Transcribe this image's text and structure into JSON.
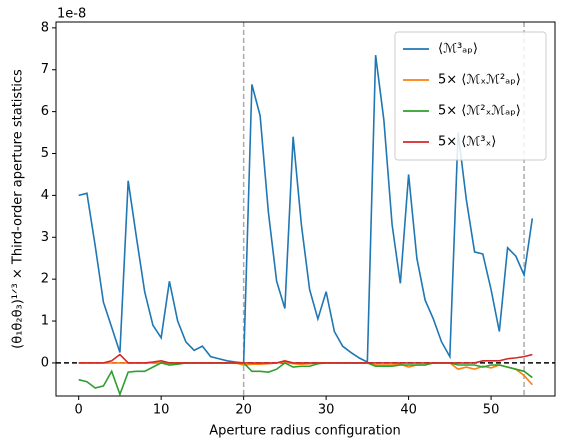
{
  "chart_data": {
    "type": "line",
    "xlabel": "Aperture radius configuration",
    "ylabel": "(θ₁θ₂θ₃)¹ᐟ³  ×  Third-order aperture statistics",
    "offset_text": "1e-8",
    "x": [
      0,
      1,
      2,
      3,
      4,
      5,
      6,
      7,
      8,
      9,
      10,
      11,
      12,
      13,
      14,
      15,
      16,
      17,
      18,
      19,
      20,
      21,
      22,
      23,
      24,
      25,
      26,
      27,
      28,
      29,
      30,
      31,
      32,
      33,
      34,
      35,
      36,
      37,
      38,
      39,
      40,
      41,
      42,
      43,
      44,
      45,
      46,
      47,
      48,
      49,
      50,
      51,
      52,
      53,
      54,
      55
    ],
    "xlim": [
      -2.75,
      57.75
    ],
    "ylim": [
      -0.79,
      8.14
    ],
    "xticks": [
      0,
      10,
      20,
      30,
      40,
      50
    ],
    "yticks": [
      0,
      1,
      2,
      3,
      4,
      5,
      6,
      7,
      8
    ],
    "vlines": [
      20,
      54
    ],
    "hline": 0,
    "legend": "upper right",
    "series": [
      {
        "name": "⟨ℳ³ₐₚ⟩",
        "color": "#1f77b4",
        "values": [
          4.0,
          4.05,
          2.8,
          1.45,
          0.85,
          0.25,
          4.35,
          3.0,
          1.7,
          0.9,
          0.6,
          1.95,
          1.0,
          0.5,
          0.3,
          0.4,
          0.15,
          0.1,
          0.05,
          0.02,
          0.0,
          6.65,
          5.9,
          3.6,
          1.95,
          1.3,
          5.4,
          3.3,
          1.75,
          1.05,
          1.7,
          0.75,
          0.4,
          0.25,
          0.12,
          0.02,
          7.35,
          5.8,
          3.3,
          1.9,
          4.5,
          2.5,
          1.5,
          1.05,
          0.5,
          0.15,
          5.5,
          3.9,
          2.65,
          2.6,
          1.75,
          0.75,
          2.75,
          2.55,
          2.1,
          3.45
        ]
      },
      {
        "name": "5× ⟨ℳₓℳ²ₐₚ⟩",
        "color": "#ff7f0e",
        "values": [
          0.0,
          0.0,
          0.0,
          0.0,
          0.0,
          0.0,
          0.0,
          0.0,
          0.0,
          0.0,
          0.0,
          0.0,
          0.0,
          0.0,
          0.0,
          0.0,
          0.0,
          0.0,
          0.0,
          0.0,
          -0.05,
          -0.03,
          -0.03,
          -0.02,
          0.0,
          0.02,
          -0.02,
          -0.03,
          -0.02,
          0.0,
          0.0,
          0.0,
          0.0,
          0.0,
          0.0,
          0.0,
          -0.05,
          -0.05,
          -0.05,
          -0.03,
          -0.1,
          -0.05,
          -0.05,
          0.0,
          0.0,
          0.0,
          -0.15,
          -0.1,
          -0.15,
          -0.08,
          -0.12,
          -0.05,
          -0.1,
          -0.15,
          -0.3,
          -0.52
        ]
      },
      {
        "name": "5× ⟨ℳ²ₓℳₐₚ⟩",
        "color": "#2ca02c",
        "values": [
          -0.4,
          -0.45,
          -0.6,
          -0.55,
          -0.2,
          -0.75,
          -0.22,
          -0.2,
          -0.2,
          -0.1,
          0.0,
          -0.05,
          -0.03,
          0.0,
          0.0,
          0.0,
          0.0,
          0.0,
          0.0,
          0.0,
          0.0,
          -0.2,
          -0.2,
          -0.22,
          -0.15,
          0.0,
          -0.1,
          -0.08,
          -0.08,
          -0.02,
          0.0,
          0.0,
          0.0,
          0.0,
          0.0,
          0.0,
          -0.08,
          -0.08,
          -0.08,
          -0.05,
          -0.05,
          -0.05,
          -0.05,
          0.0,
          0.0,
          0.0,
          -0.05,
          -0.05,
          -0.05,
          -0.1,
          -0.05,
          -0.05,
          -0.1,
          -0.15,
          -0.2,
          -0.35
        ]
      },
      {
        "name": "5× ⟨ℳ³ₓ⟩",
        "color": "#d62728",
        "values": [
          0.0,
          0.0,
          0.0,
          0.0,
          0.05,
          0.2,
          0.0,
          0.0,
          0.0,
          0.02,
          0.05,
          0.0,
          0.0,
          0.0,
          0.0,
          0.0,
          0.0,
          0.0,
          0.0,
          0.0,
          0.0,
          0.0,
          0.0,
          0.0,
          0.0,
          0.05,
          0.0,
          0.0,
          0.0,
          0.0,
          0.0,
          0.0,
          0.0,
          0.0,
          0.0,
          0.0,
          0.0,
          0.0,
          0.0,
          0.0,
          0.0,
          0.0,
          0.0,
          0.0,
          0.0,
          0.0,
          0.0,
          0.0,
          0.0,
          0.05,
          0.05,
          0.05,
          0.1,
          0.12,
          0.15,
          0.2
        ]
      }
    ]
  }
}
